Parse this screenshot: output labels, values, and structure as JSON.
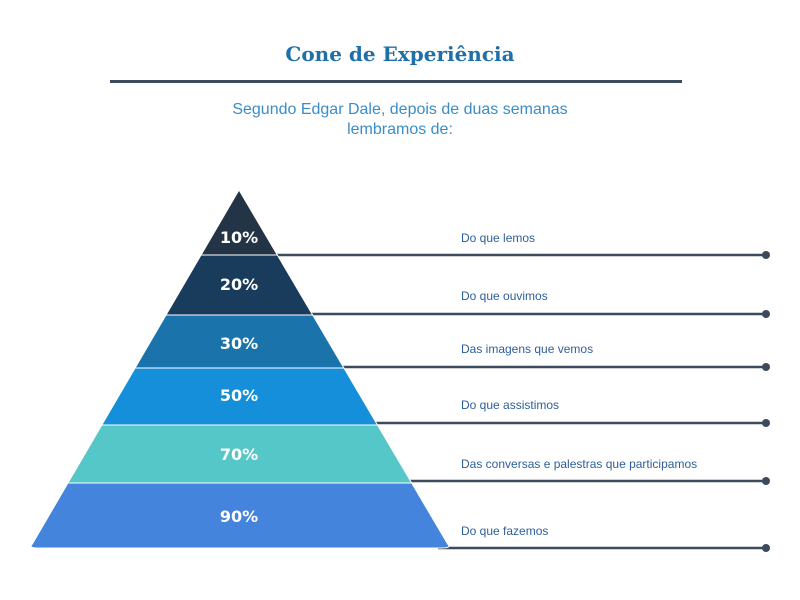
{
  "title": "Cone de Experiência",
  "subtitle_lines": [
    "Segundo Edgar Dale, depois de duas semanas",
    "lembramos de:"
  ],
  "colors": {
    "title": "#1f6fa8",
    "rule": "#3b4a5c",
    "subtitle": "#3a8dc8",
    "connector": "#3b4a5c",
    "text": "#2d5f9a"
  },
  "levels": [
    {
      "percent": "10%",
      "label": "Do que lemos",
      "color": "#243447"
    },
    {
      "percent": "20%",
      "label": "Do que ouvimos",
      "color": "#1a3c5c"
    },
    {
      "percent": "30%",
      "label": "Das imagens que vemos",
      "color": "#1a74ab"
    },
    {
      "percent": "50%",
      "label": "Do que assistimos",
      "color": "#158fd9"
    },
    {
      "percent": "70%",
      "label": "Das conversas e palestras que participamos",
      "color": "#56c7c8"
    },
    {
      "percent": "90%",
      "label": "Do que fazemos",
      "color": "#4584dc"
    }
  ]
}
